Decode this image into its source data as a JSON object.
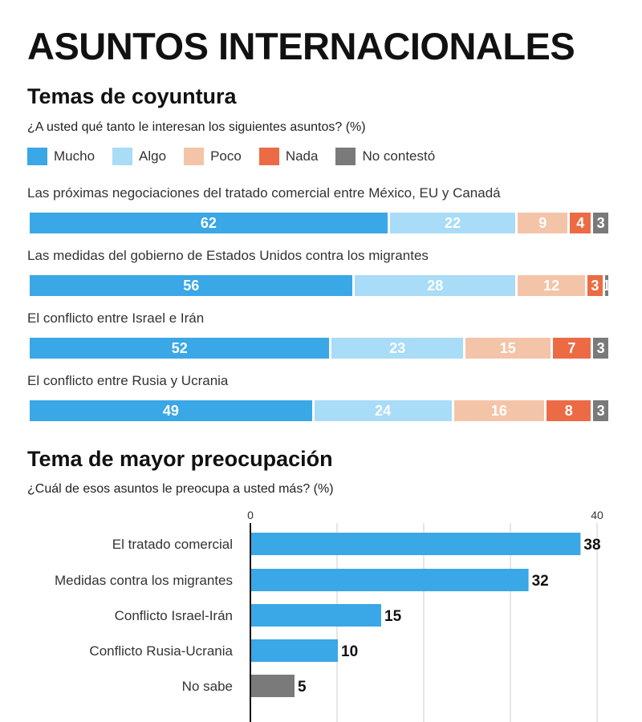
{
  "title": "ASUNTOS INTERNACIONALES",
  "section1": {
    "heading": "Temas de coyuntura",
    "question": "¿A usted qué tanto le interesan los siguientes asuntos? (%)"
  },
  "section2": {
    "heading": "Tema de mayor preocupación",
    "question": "¿Cuál de esos asuntos le preocupa a usted más? (%)"
  },
  "colors": {
    "Mucho": "#3aa7e6",
    "Algo": "#a8dcf7",
    "Poco": "#f4c4a8",
    "Nada": "#ec6b45",
    "No contestó": "#7a7a7a"
  },
  "chart_data": [
    {
      "type": "bar",
      "orientation": "horizontal",
      "stacked": true,
      "categories": [
        "Las próximas negociaciones del tratado comercial entre México, EU y Canadá",
        "Las medidas del gobierno de Estados Unidos contra los migrantes",
        "El conflicto entre Israel e Irán",
        "El conflicto entre Rusia y Ucrania"
      ],
      "series": [
        {
          "name": "Mucho",
          "values": [
            62,
            56,
            52,
            49
          ]
        },
        {
          "name": "Algo",
          "values": [
            22,
            28,
            23,
            24
          ]
        },
        {
          "name": "Poco",
          "values": [
            9,
            12,
            15,
            16
          ]
        },
        {
          "name": "Nada",
          "values": [
            4,
            3,
            7,
            8
          ]
        },
        {
          "name": "No contestó",
          "values": [
            3,
            1,
            3,
            3
          ]
        }
      ],
      "legend": "top-left"
    },
    {
      "type": "bar",
      "orientation": "horizontal",
      "categories": [
        "El tratado comercial",
        "Medidas contra los migrantes",
        "Conflicto Israel-Irán",
        "Conflicto Rusia-Ucrania",
        "No sabe"
      ],
      "values": [
        38,
        32,
        15,
        10,
        5
      ],
      "xlim": [
        0,
        40
      ],
      "xticks": [
        0,
        40
      ],
      "grid": true
    }
  ]
}
